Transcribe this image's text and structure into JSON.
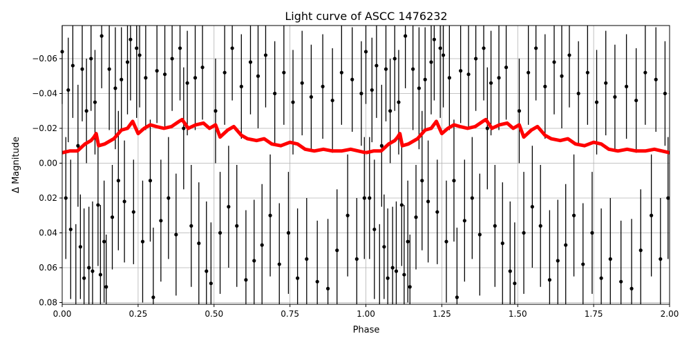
{
  "chart_data": {
    "type": "scatter",
    "title": "Light curve of ASCC 1476232",
    "xlabel": "Phase",
    "ylabel": "Δ Magnitude",
    "xlim": [
      0,
      2
    ],
    "ylim": [
      0.081,
      -0.079
    ],
    "y_inverted": true,
    "grid": true,
    "x_ticks": [
      "0.00",
      "0.25",
      "0.50",
      "0.75",
      "1.00",
      "1.25",
      "1.50",
      "1.75",
      "2.00"
    ],
    "y_ticks": [
      "−0.06",
      "−0.04",
      "−0.02",
      "0.00",
      "0.02",
      "0.04",
      "0.06",
      "0.08"
    ],
    "x_tick_values": [
      0,
      0.25,
      0.5,
      0.75,
      1,
      1.25,
      1.5,
      1.75,
      2
    ],
    "y_tick_values": [
      -0.06,
      -0.04,
      -0.02,
      0,
      0.02,
      0.04,
      0.06,
      0.08
    ],
    "colors": {
      "points": "#000000",
      "trend": "#ff0000",
      "grid": "#b0b0b0"
    },
    "phase_repeats": 2,
    "points": [
      [
        0.0,
        -0.064,
        0.03
      ],
      [
        0.012,
        0.02,
        0.035
      ],
      [
        0.02,
        -0.042,
        0.03
      ],
      [
        0.028,
        0.038,
        0.04
      ],
      [
        0.035,
        -0.056,
        0.03
      ],
      [
        0.045,
        0.08,
        0.045
      ],
      [
        0.052,
        -0.01,
        0.035
      ],
      [
        0.06,
        0.048,
        0.03
      ],
      [
        0.066,
        -0.054,
        0.03
      ],
      [
        0.072,
        0.066,
        0.04
      ],
      [
        0.08,
        -0.03,
        0.03
      ],
      [
        0.088,
        0.06,
        0.035
      ],
      [
        0.095,
        -0.06,
        0.03
      ],
      [
        0.1,
        0.062,
        0.04
      ],
      [
        0.108,
        -0.035,
        0.03
      ],
      [
        0.118,
        0.024,
        0.035
      ],
      [
        0.126,
        0.064,
        0.04
      ],
      [
        0.13,
        -0.073,
        0.03
      ],
      [
        0.138,
        0.045,
        0.035
      ],
      [
        0.145,
        0.071,
        0.03
      ],
      [
        0.155,
        -0.054,
        0.035
      ],
      [
        0.165,
        0.031,
        0.03
      ],
      [
        0.175,
        -0.043,
        0.035
      ],
      [
        0.185,
        0.01,
        0.04
      ],
      [
        0.195,
        -0.048,
        0.03
      ],
      [
        0.205,
        0.022,
        0.035
      ],
      [
        0.215,
        -0.058,
        0.03
      ],
      [
        0.225,
        -0.071,
        0.035
      ],
      [
        0.235,
        0.028,
        0.03
      ],
      [
        0.245,
        -0.066,
        0.04
      ],
      [
        0.255,
        -0.062,
        0.03
      ],
      [
        0.265,
        0.045,
        0.035
      ],
      [
        0.275,
        -0.049,
        0.03
      ],
      [
        0.29,
        0.01,
        0.035
      ],
      [
        0.3,
        0.077,
        0.04
      ],
      [
        0.312,
        -0.053,
        0.03
      ],
      [
        0.325,
        0.033,
        0.035
      ],
      [
        0.338,
        -0.051,
        0.03
      ],
      [
        0.35,
        0.02,
        0.035
      ],
      [
        0.362,
        -0.06,
        0.03
      ],
      [
        0.375,
        0.041,
        0.035
      ],
      [
        0.388,
        -0.066,
        0.03
      ],
      [
        0.4,
        -0.02,
        0.035
      ],
      [
        0.412,
        -0.046,
        0.03
      ],
      [
        0.425,
        0.036,
        0.035
      ],
      [
        0.438,
        -0.049,
        0.03
      ],
      [
        0.45,
        0.046,
        0.035
      ],
      [
        0.462,
        -0.055,
        0.03
      ],
      [
        0.475,
        0.062,
        0.04
      ],
      [
        0.49,
        0.069,
        0.035
      ],
      [
        0.505,
        -0.03,
        0.03
      ],
      [
        0.52,
        0.04,
        0.035
      ],
      [
        0.535,
        -0.052,
        0.03
      ],
      [
        0.548,
        0.025,
        0.035
      ],
      [
        0.56,
        -0.066,
        0.03
      ],
      [
        0.575,
        0.036,
        0.035
      ],
      [
        0.59,
        -0.044,
        0.03
      ],
      [
        0.605,
        0.067,
        0.04
      ],
      [
        0.62,
        -0.058,
        0.03
      ],
      [
        0.632,
        0.056,
        0.035
      ],
      [
        0.645,
        -0.05,
        0.03
      ],
      [
        0.658,
        0.047,
        0.035
      ],
      [
        0.67,
        -0.062,
        0.03
      ],
      [
        0.685,
        0.03,
        0.035
      ],
      [
        0.7,
        -0.04,
        0.03
      ],
      [
        0.715,
        0.058,
        0.035
      ],
      [
        0.73,
        -0.052,
        0.03
      ],
      [
        0.745,
        0.04,
        0.035
      ],
      [
        0.76,
        -0.035,
        0.03
      ],
      [
        0.775,
        0.066,
        0.04
      ],
      [
        0.79,
        -0.046,
        0.03
      ],
      [
        0.805,
        0.055,
        0.035
      ],
      [
        0.82,
        -0.038,
        0.03
      ],
      [
        0.84,
        0.068,
        0.035
      ],
      [
        0.858,
        -0.044,
        0.03
      ],
      [
        0.875,
        0.072,
        0.04
      ],
      [
        0.89,
        -0.036,
        0.03
      ],
      [
        0.905,
        0.05,
        0.035
      ],
      [
        0.92,
        -0.052,
        0.03
      ],
      [
        0.94,
        0.03,
        0.035
      ],
      [
        0.955,
        -0.048,
        0.03
      ],
      [
        0.97,
        0.055,
        0.035
      ],
      [
        0.985,
        -0.04,
        0.03
      ],
      [
        0.995,
        0.02,
        0.035
      ]
    ],
    "trend": [
      [
        0.0,
        -0.006
      ],
      [
        0.025,
        -0.007
      ],
      [
        0.05,
        -0.007
      ],
      [
        0.075,
        -0.011
      ],
      [
        0.095,
        -0.013
      ],
      [
        0.105,
        -0.015
      ],
      [
        0.112,
        -0.017
      ],
      [
        0.12,
        -0.01
      ],
      [
        0.14,
        -0.011
      ],
      [
        0.17,
        -0.014
      ],
      [
        0.195,
        -0.019
      ],
      [
        0.215,
        -0.02
      ],
      [
        0.232,
        -0.024
      ],
      [
        0.25,
        -0.017
      ],
      [
        0.27,
        -0.02
      ],
      [
        0.29,
        -0.022
      ],
      [
        0.31,
        -0.021
      ],
      [
        0.335,
        -0.02
      ],
      [
        0.36,
        -0.021
      ],
      [
        0.385,
        -0.024
      ],
      [
        0.395,
        -0.025
      ],
      [
        0.415,
        -0.02
      ],
      [
        0.44,
        -0.022
      ],
      [
        0.465,
        -0.023
      ],
      [
        0.485,
        -0.02
      ],
      [
        0.505,
        -0.022
      ],
      [
        0.52,
        -0.015
      ],
      [
        0.545,
        -0.019
      ],
      [
        0.565,
        -0.021
      ],
      [
        0.59,
        -0.016
      ],
      [
        0.61,
        -0.014
      ],
      [
        0.64,
        -0.013
      ],
      [
        0.665,
        -0.014
      ],
      [
        0.69,
        -0.011
      ],
      [
        0.72,
        -0.01
      ],
      [
        0.75,
        -0.012
      ],
      [
        0.775,
        -0.011
      ],
      [
        0.8,
        -0.008
      ],
      [
        0.83,
        -0.007
      ],
      [
        0.86,
        -0.008
      ],
      [
        0.89,
        -0.007
      ],
      [
        0.92,
        -0.007
      ],
      [
        0.95,
        -0.008
      ],
      [
        0.975,
        -0.007
      ],
      [
        1.0,
        -0.006
      ]
    ]
  }
}
